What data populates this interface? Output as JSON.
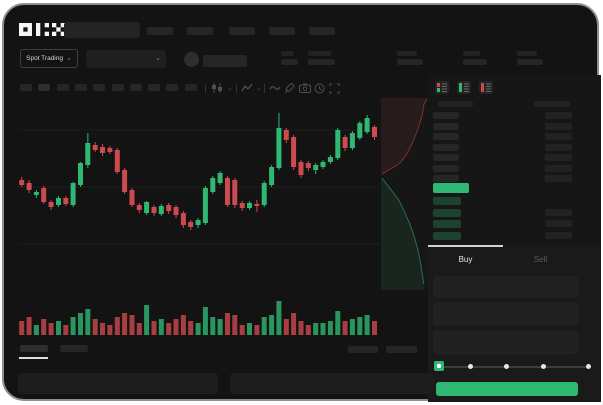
{
  "app": {
    "brand": "OKX"
  },
  "nav": {
    "item_count": 5
  },
  "topbar": {
    "search_placeholder": ""
  },
  "market_bar": {
    "pair_selector_label": "Spot Trading",
    "caret": "⌄",
    "stat_pair_count": 5
  },
  "chart_toolbar": {
    "timeframe_count": 10,
    "icons": [
      "candle-style",
      "candle-style-caret",
      "indicators",
      "indicators-caret",
      "line-overlay",
      "draw-tool",
      "camera-snapshot",
      "replay-clock",
      "fullscreen"
    ]
  },
  "orderbook": {
    "mode_icons": [
      "book-combined",
      "book-bids-only",
      "book-asks-only"
    ],
    "ask_row_count": 7,
    "bid_row_count": 4,
    "last_price_highlighted": true
  },
  "trade_panel": {
    "tabs": [
      {
        "label": "Buy",
        "active": true
      },
      {
        "label": "Sell",
        "active": false
      }
    ],
    "input_count": 3,
    "slider_step_count": 5,
    "submit_label": ""
  },
  "colors": {
    "green": "#2eb872",
    "red": "#cd4a4f",
    "bid_row_green": "#1e4230",
    "window_bg": "#131313",
    "accent_text": "#e8e8e8",
    "muted_text": "#5c5c5c"
  },
  "chart_data": {
    "type": "candlestick",
    "ohlc_format": [
      "open",
      "high",
      "low",
      "close"
    ],
    "price_scale": "relative-units (rendered as y = 193 - value px inside chart viewport)",
    "x_count": 49,
    "grid": true,
    "candles": [
      [
        110,
        113,
        103,
        105
      ],
      [
        107,
        110,
        97,
        100
      ],
      [
        95,
        100,
        92,
        98
      ],
      [
        102,
        104,
        86,
        88
      ],
      [
        88,
        90,
        80,
        83
      ],
      [
        85,
        94,
        83,
        92
      ],
      [
        92,
        94,
        84,
        86
      ],
      [
        85,
        108,
        83,
        107
      ],
      [
        105,
        128,
        103,
        127
      ],
      [
        125,
        157,
        122,
        147
      ],
      [
        145,
        148,
        138,
        140
      ],
      [
        143,
        146,
        134,
        137
      ],
      [
        142,
        144,
        136,
        138
      ],
      [
        140,
        142,
        116,
        118
      ],
      [
        120,
        122,
        96,
        98
      ],
      [
        100,
        102,
        83,
        85
      ],
      [
        85,
        87,
        77,
        80
      ],
      [
        77,
        89,
        75,
        88
      ],
      [
        83,
        85,
        74,
        77
      ],
      [
        76,
        86,
        74,
        84
      ],
      [
        85,
        87,
        76,
        79
      ],
      [
        83,
        85,
        72,
        75
      ],
      [
        77,
        79,
        62,
        65
      ],
      [
        68,
        70,
        60,
        63
      ],
      [
        65,
        72,
        62,
        70
      ],
      [
        67,
        104,
        65,
        102
      ],
      [
        98,
        114,
        96,
        112
      ],
      [
        107,
        119,
        105,
        117
      ],
      [
        112,
        114,
        83,
        85
      ],
      [
        110,
        112,
        82,
        85
      ],
      [
        87,
        89,
        79,
        82
      ],
      [
        82,
        89,
        80,
        87
      ],
      [
        86,
        90,
        78,
        84
      ],
      [
        85,
        109,
        83,
        107
      ],
      [
        105,
        125,
        103,
        123
      ],
      [
        122,
        177,
        120,
        162
      ],
      [
        160,
        162,
        147,
        150
      ],
      [
        153,
        155,
        120,
        123
      ],
      [
        128,
        130,
        112,
        115
      ],
      [
        127,
        129,
        119,
        122
      ],
      [
        120,
        127,
        116,
        125
      ],
      [
        123,
        130,
        121,
        128
      ],
      [
        128,
        135,
        126,
        133
      ],
      [
        132,
        162,
        130,
        160
      ],
      [
        153,
        155,
        139,
        142
      ],
      [
        142,
        159,
        140,
        157
      ],
      [
        152,
        169,
        150,
        167
      ],
      [
        158,
        175,
        156,
        172
      ],
      [
        163,
        165,
        150,
        153
      ]
    ],
    "volumes": [
      14,
      18,
      10,
      16,
      12,
      14,
      10,
      18,
      22,
      26,
      16,
      12,
      10,
      18,
      22,
      20,
      12,
      30,
      14,
      16,
      12,
      16,
      20,
      14,
      12,
      28,
      18,
      16,
      22,
      20,
      10,
      12,
      10,
      18,
      20,
      34,
      16,
      22,
      14,
      10,
      12,
      12,
      14,
      24,
      14,
      16,
      18,
      20,
      14
    ],
    "depth": {
      "type": "area",
      "ask_curve": [
        [
          1,
          0.01
        ],
        [
          0.93,
          0.04
        ],
        [
          0.9,
          0.09
        ],
        [
          0.85,
          0.13
        ],
        [
          0.78,
          0.18
        ],
        [
          0.68,
          0.24
        ],
        [
          0.55,
          0.3
        ],
        [
          0.42,
          0.34
        ],
        [
          0.3,
          0.36
        ],
        [
          0.15,
          0.38
        ],
        [
          0.02,
          0.4
        ]
      ],
      "bid_curve": [
        [
          0.02,
          0.42
        ],
        [
          0.12,
          0.45
        ],
        [
          0.25,
          0.49
        ],
        [
          0.4,
          0.54
        ],
        [
          0.52,
          0.6
        ],
        [
          0.63,
          0.66
        ],
        [
          0.72,
          0.72
        ],
        [
          0.8,
          0.79
        ],
        [
          0.86,
          0.86
        ],
        [
          0.9,
          0.92
        ],
        [
          0.93,
          0.97
        ]
      ]
    }
  }
}
